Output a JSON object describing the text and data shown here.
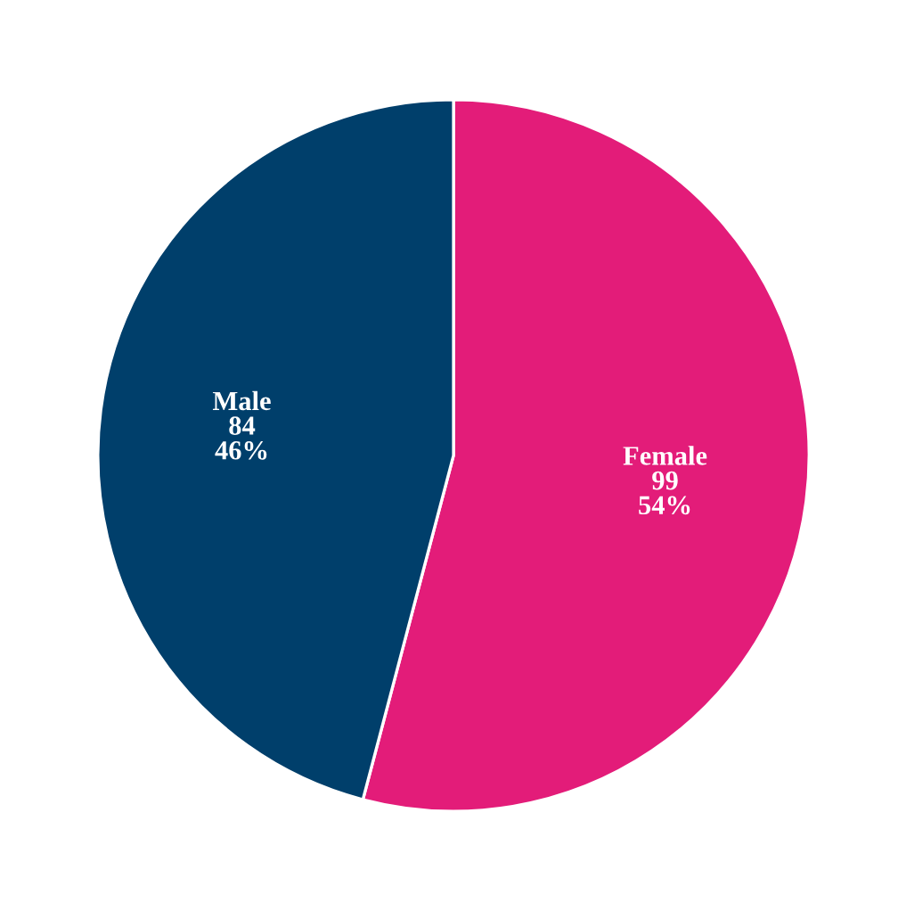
{
  "chart_data": {
    "type": "pie",
    "categories": [
      "Female",
      "Male"
    ],
    "values": [
      99,
      84
    ],
    "colors": [
      "#e31c79",
      "#003f6b"
    ],
    "value_labels": [
      "99\n54%",
      "84\n46%"
    ],
    "legend": false
  }
}
